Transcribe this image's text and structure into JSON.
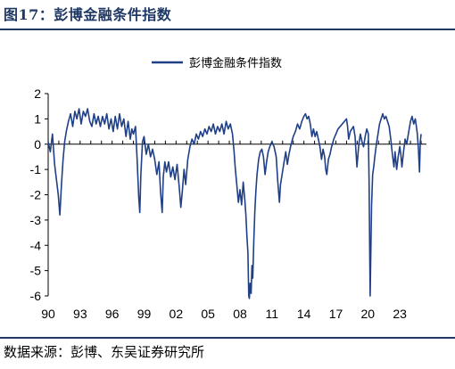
{
  "figure": {
    "title": "图17：彭博金融条件指数",
    "source": "数据来源：彭博、东吴证券研究所"
  },
  "colors": {
    "series": "#1f3f86",
    "text": "#000000",
    "rule": "#1f3864"
  },
  "chart_data": {
    "type": "line",
    "title": "",
    "xlabel": "",
    "ylabel": "",
    "ylim": [
      -6,
      2
    ],
    "xlim": [
      1990,
      2025.5
    ],
    "yticks": [
      "2",
      "1",
      "0",
      "-1",
      "-2",
      "-3",
      "-4",
      "-5",
      "-6"
    ],
    "xticks": [
      "90",
      "93",
      "96",
      "99",
      "02",
      "05",
      "08",
      "11",
      "14",
      "17",
      "20",
      "23"
    ],
    "grid": false,
    "legend": "top-center",
    "series": [
      {
        "name": "彭博金融条件指数",
        "points": [
          [
            1990.0,
            0.1
          ],
          [
            1990.2,
            -0.3
          ],
          [
            1990.4,
            0.4
          ],
          [
            1990.6,
            -0.8
          ],
          [
            1990.8,
            -1.5
          ],
          [
            1990.95,
            -2.0
          ],
          [
            1991.1,
            -2.8
          ],
          [
            1991.25,
            -1.6
          ],
          [
            1991.4,
            -0.6
          ],
          [
            1991.55,
            0.1
          ],
          [
            1991.7,
            0.5
          ],
          [
            1991.9,
            0.9
          ],
          [
            1992.1,
            1.2
          ],
          [
            1992.3,
            0.7
          ],
          [
            1992.5,
            1.3
          ],
          [
            1992.7,
            1.0
          ],
          [
            1992.9,
            1.4
          ],
          [
            1993.1,
            0.8
          ],
          [
            1993.3,
            1.3
          ],
          [
            1993.5,
            1.1
          ],
          [
            1993.7,
            1.4
          ],
          [
            1993.9,
            0.9
          ],
          [
            1994.1,
            0.7
          ],
          [
            1994.3,
            1.2
          ],
          [
            1994.5,
            0.8
          ],
          [
            1994.7,
            1.1
          ],
          [
            1994.9,
            0.7
          ],
          [
            1995.1,
            1.1
          ],
          [
            1995.3,
            0.8
          ],
          [
            1995.5,
            1.2
          ],
          [
            1995.7,
            0.6
          ],
          [
            1995.9,
            1.0
          ],
          [
            1996.1,
            0.5
          ],
          [
            1996.3,
            1.1
          ],
          [
            1996.5,
            0.6
          ],
          [
            1996.7,
            1.2
          ],
          [
            1996.9,
            0.7
          ],
          [
            1997.1,
            1.0
          ],
          [
            1997.3,
            0.3
          ],
          [
            1997.5,
            0.9
          ],
          [
            1997.7,
            0.2
          ],
          [
            1997.85,
            0.6
          ],
          [
            1998.0,
            0.4
          ],
          [
            1998.2,
            0.7
          ],
          [
            1998.35,
            -0.6
          ],
          [
            1998.5,
            -2.1
          ],
          [
            1998.6,
            -2.7
          ],
          [
            1998.7,
            -1.2
          ],
          [
            1998.85,
            0.1
          ],
          [
            1999.0,
            0.3
          ],
          [
            1999.2,
            -0.4
          ],
          [
            1999.4,
            0.0
          ],
          [
            1999.6,
            -0.5
          ],
          [
            1999.8,
            -0.2
          ],
          [
            2000.0,
            -0.6
          ],
          [
            2000.2,
            -1.2
          ],
          [
            2000.4,
            -0.7
          ],
          [
            2000.55,
            -1.9
          ],
          [
            2000.7,
            -2.7
          ],
          [
            2000.8,
            -1.3
          ],
          [
            2000.95,
            -0.7
          ],
          [
            2001.1,
            -1.1
          ],
          [
            2001.3,
            -0.7
          ],
          [
            2001.5,
            -1.3
          ],
          [
            2001.7,
            -0.9
          ],
          [
            2001.9,
            -1.4
          ],
          [
            2002.1,
            -0.8
          ],
          [
            2002.3,
            -1.7
          ],
          [
            2002.45,
            -2.5
          ],
          [
            2002.6,
            -1.8
          ],
          [
            2002.75,
            -1.0
          ],
          [
            2002.9,
            -1.6
          ],
          [
            2003.1,
            -0.6
          ],
          [
            2003.3,
            -0.1
          ],
          [
            2003.5,
            0.2
          ],
          [
            2003.7,
            0.0
          ],
          [
            2003.9,
            0.4
          ],
          [
            2004.1,
            0.2
          ],
          [
            2004.3,
            0.5
          ],
          [
            2004.5,
            0.3
          ],
          [
            2004.7,
            0.6
          ],
          [
            2004.9,
            0.4
          ],
          [
            2005.1,
            0.7
          ],
          [
            2005.3,
            0.5
          ],
          [
            2005.5,
            0.8
          ],
          [
            2005.7,
            0.4
          ],
          [
            2005.9,
            0.7
          ],
          [
            2006.1,
            0.5
          ],
          [
            2006.3,
            0.8
          ],
          [
            2006.5,
            0.4
          ],
          [
            2006.7,
            0.9
          ],
          [
            2006.9,
            0.6
          ],
          [
            2007.1,
            0.8
          ],
          [
            2007.3,
            0.4
          ],
          [
            2007.45,
            -0.3
          ],
          [
            2007.55,
            -0.9
          ],
          [
            2007.7,
            -1.6
          ],
          [
            2007.85,
            -2.3
          ],
          [
            2008.0,
            -1.8
          ],
          [
            2008.15,
            -2.4
          ],
          [
            2008.3,
            -1.5
          ],
          [
            2008.45,
            -2.2
          ],
          [
            2008.55,
            -2.8
          ],
          [
            2008.65,
            -3.6
          ],
          [
            2008.75,
            -4.3
          ],
          [
            2008.82,
            -6.0
          ],
          [
            2008.88,
            -6.1
          ],
          [
            2008.95,
            -5.5
          ],
          [
            2009.05,
            -5.9
          ],
          [
            2009.12,
            -4.8
          ],
          [
            2009.2,
            -5.3
          ],
          [
            2009.3,
            -3.8
          ],
          [
            2009.4,
            -2.6
          ],
          [
            2009.5,
            -1.8
          ],
          [
            2009.6,
            -1.2
          ],
          [
            2009.75,
            -0.6
          ],
          [
            2009.9,
            -0.3
          ],
          [
            2010.05,
            -0.2
          ],
          [
            2010.2,
            -0.5
          ],
          [
            2010.35,
            -1.2
          ],
          [
            2010.5,
            -0.7
          ],
          [
            2010.65,
            -0.3
          ],
          [
            2010.8,
            -0.1
          ],
          [
            2011.0,
            0.1
          ],
          [
            2011.2,
            -0.1
          ],
          [
            2011.4,
            -0.5
          ],
          [
            2011.55,
            -1.5
          ],
          [
            2011.7,
            -2.3
          ],
          [
            2011.8,
            -1.6
          ],
          [
            2011.95,
            -1.2
          ],
          [
            2012.1,
            -0.8
          ],
          [
            2012.3,
            -0.3
          ],
          [
            2012.45,
            -0.8
          ],
          [
            2012.6,
            -0.4
          ],
          [
            2012.8,
            0.0
          ],
          [
            2013.0,
            0.3
          ],
          [
            2013.2,
            0.5
          ],
          [
            2013.4,
            0.8
          ],
          [
            2013.6,
            0.6
          ],
          [
            2013.8,
            0.9
          ],
          [
            2014.0,
            1.1
          ],
          [
            2014.15,
            1.2
          ],
          [
            2014.3,
            1.0
          ],
          [
            2014.45,
            1.1
          ],
          [
            2014.6,
            0.8
          ],
          [
            2014.75,
            0.3
          ],
          [
            2014.9,
            0.6
          ],
          [
            2015.05,
            0.3
          ],
          [
            2015.2,
            0.5
          ],
          [
            2015.35,
            0.2
          ],
          [
            2015.5,
            -0.1
          ],
          [
            2015.65,
            -0.6
          ],
          [
            2015.8,
            -0.2
          ],
          [
            2015.95,
            -0.5
          ],
          [
            2016.05,
            -1.0
          ],
          [
            2016.15,
            -1.2
          ],
          [
            2016.3,
            -0.6
          ],
          [
            2016.45,
            -0.4
          ],
          [
            2016.6,
            -0.1
          ],
          [
            2016.8,
            0.2
          ],
          [
            2017.0,
            0.4
          ],
          [
            2017.2,
            0.6
          ],
          [
            2017.4,
            0.7
          ],
          [
            2017.6,
            0.8
          ],
          [
            2017.8,
            0.9
          ],
          [
            2018.0,
            1.0
          ],
          [
            2018.1,
            0.7
          ],
          [
            2018.2,
            0.2
          ],
          [
            2018.35,
            0.5
          ],
          [
            2018.5,
            0.6
          ],
          [
            2018.65,
            0.7
          ],
          [
            2018.8,
            0.3
          ],
          [
            2018.9,
            -0.4
          ],
          [
            2018.98,
            -0.9
          ],
          [
            2019.05,
            -0.5
          ],
          [
            2019.15,
            0.0
          ],
          [
            2019.3,
            0.4
          ],
          [
            2019.45,
            0.1
          ],
          [
            2019.6,
            -0.1
          ],
          [
            2019.75,
            0.3
          ],
          [
            2019.9,
            0.6
          ],
          [
            2020.05,
            0.4
          ],
          [
            2020.12,
            -1.5
          ],
          [
            2020.18,
            -4.6
          ],
          [
            2020.22,
            -6.0
          ],
          [
            2020.28,
            -4.2
          ],
          [
            2020.35,
            -2.4
          ],
          [
            2020.45,
            -1.2
          ],
          [
            2020.55,
            -0.9
          ],
          [
            2020.65,
            -0.5
          ],
          [
            2020.8,
            0.0
          ],
          [
            2020.95,
            0.4
          ],
          [
            2021.1,
            0.8
          ],
          [
            2021.25,
            1.0
          ],
          [
            2021.4,
            1.2
          ],
          [
            2021.55,
            1.0
          ],
          [
            2021.7,
            1.1
          ],
          [
            2021.85,
            0.9
          ],
          [
            2022.0,
            0.7
          ],
          [
            2022.15,
            0.2
          ],
          [
            2022.3,
            -0.4
          ],
          [
            2022.45,
            -0.9
          ],
          [
            2022.55,
            -0.3
          ],
          [
            2022.7,
            -1.0
          ],
          [
            2022.85,
            -0.5
          ],
          [
            2023.0,
            -0.1
          ],
          [
            2023.1,
            -0.4
          ],
          [
            2023.2,
            -0.9
          ],
          [
            2023.35,
            -0.3
          ],
          [
            2023.5,
            0.2
          ],
          [
            2023.65,
            0.0
          ],
          [
            2023.8,
            0.4
          ],
          [
            2024.0,
            0.9
          ],
          [
            2024.15,
            1.1
          ],
          [
            2024.3,
            0.8
          ],
          [
            2024.45,
            1.0
          ],
          [
            2024.55,
            0.7
          ],
          [
            2024.65,
            0.4
          ],
          [
            2024.75,
            -0.2
          ],
          [
            2024.85,
            -1.1
          ],
          [
            2024.92,
            0.1
          ],
          [
            2025.0,
            0.4
          ]
        ]
      }
    ]
  }
}
